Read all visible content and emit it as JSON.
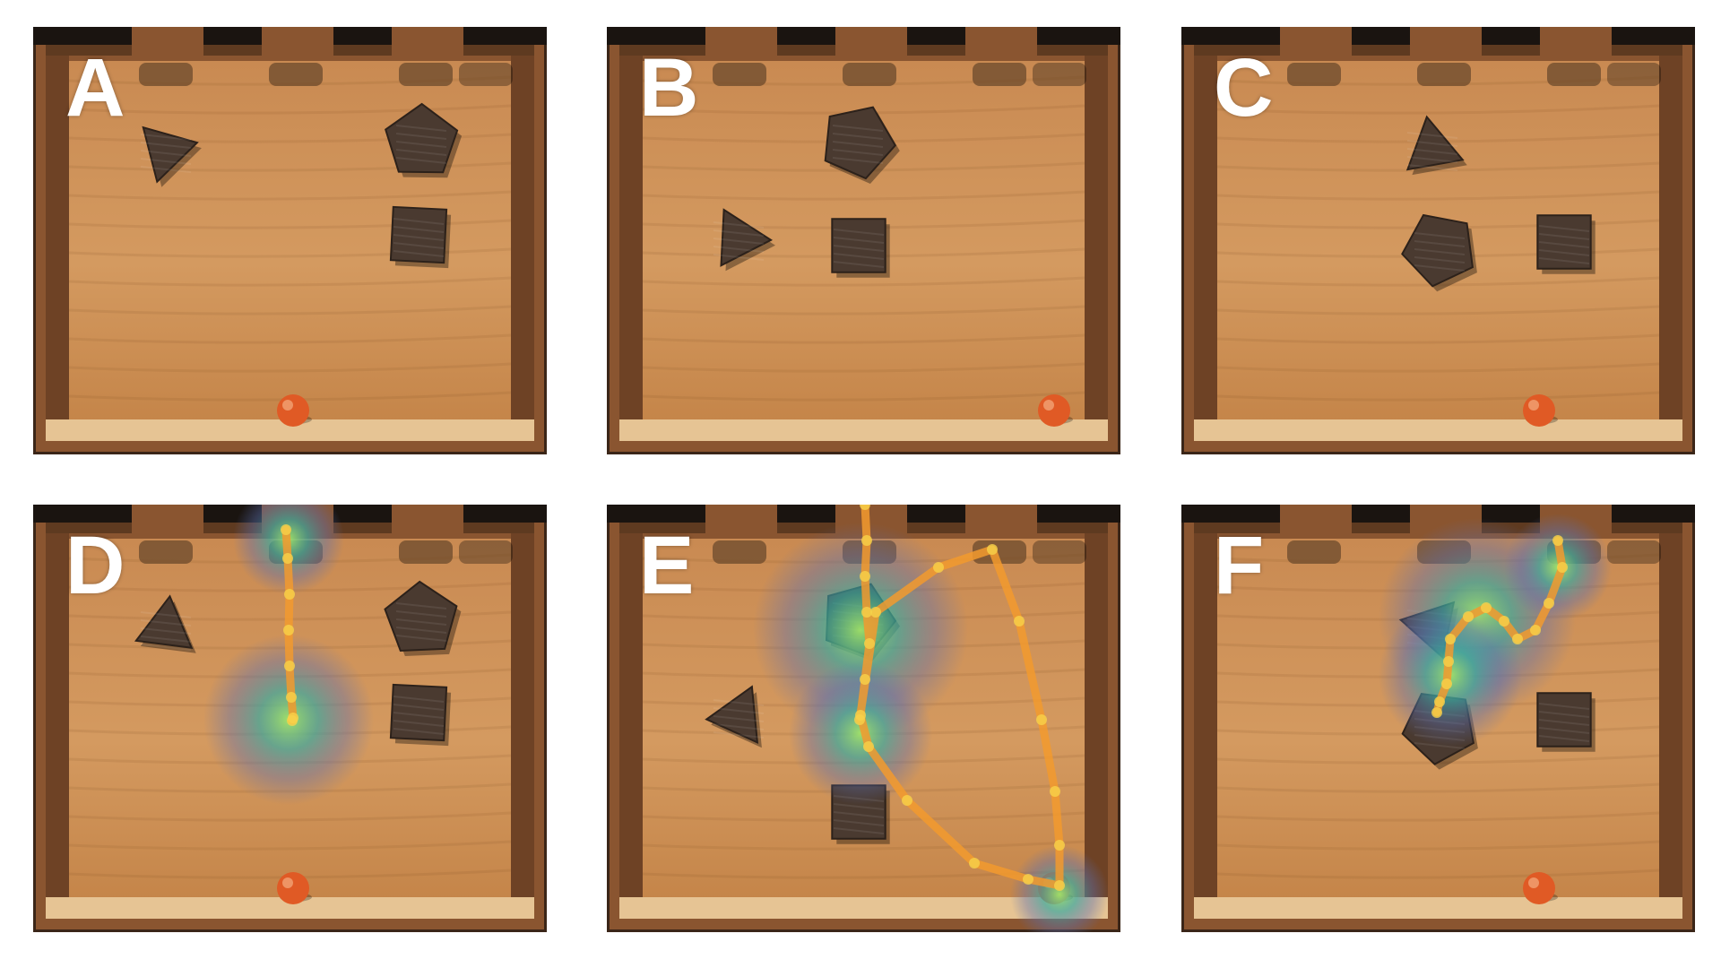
{
  "panels": [
    {
      "label": "A",
      "shapes": [
        {
          "kind": "triangle",
          "at": "top-left"
        },
        {
          "kind": "pentagon",
          "at": "top-right"
        },
        {
          "kind": "square",
          "at": "right"
        }
      ],
      "ball": "bottom-center",
      "overlay": false
    },
    {
      "label": "B",
      "shapes": [
        {
          "kind": "pentagon",
          "at": "top-center"
        },
        {
          "kind": "triangle",
          "at": "left"
        },
        {
          "kind": "square",
          "at": "center"
        }
      ],
      "ball": "bottom-right",
      "overlay": false
    },
    {
      "label": "C",
      "shapes": [
        {
          "kind": "triangle",
          "at": "top-center"
        },
        {
          "kind": "pentagon",
          "at": "center"
        },
        {
          "kind": "square",
          "at": "right"
        }
      ],
      "ball": "bottom-center-right",
      "overlay": false
    },
    {
      "label": "D",
      "shapes": [
        {
          "kind": "triangle",
          "at": "top-left"
        },
        {
          "kind": "pentagon",
          "at": "top-right"
        },
        {
          "kind": "square",
          "at": "right"
        }
      ],
      "ball": "bottom-center",
      "overlay": true,
      "gaze_hotspots": [
        "top-slot-2",
        "center-left"
      ]
    },
    {
      "label": "E",
      "shapes": [
        {
          "kind": "pentagon",
          "at": "top-center"
        },
        {
          "kind": "triangle",
          "at": "left"
        },
        {
          "kind": "square",
          "at": "lower-center"
        }
      ],
      "ball": "bottom-right",
      "overlay": true,
      "gaze_hotspots": [
        "upper-center",
        "bottom-right"
      ]
    },
    {
      "label": "F",
      "shapes": [
        {
          "kind": "triangle",
          "at": "top-center"
        },
        {
          "kind": "pentagon",
          "at": "center"
        },
        {
          "kind": "square",
          "at": "right"
        }
      ],
      "ball": "bottom-center-right",
      "overlay": true,
      "gaze_hotspots": [
        "upper-center",
        "upper-right"
      ]
    }
  ],
  "colors": {
    "wood_floor": "#c8884f",
    "wood_frame": "#8a5530",
    "frame_dark": "#3b2618",
    "shape_fill": "#4a3a30",
    "ball": "#e05a25",
    "trace": "#f29a2e",
    "trace_point": "#f8d24a",
    "heat_outer": "#5a6fb0",
    "heat_mid": "#3aa8a0",
    "heat_inner": "#9fe36a"
  }
}
